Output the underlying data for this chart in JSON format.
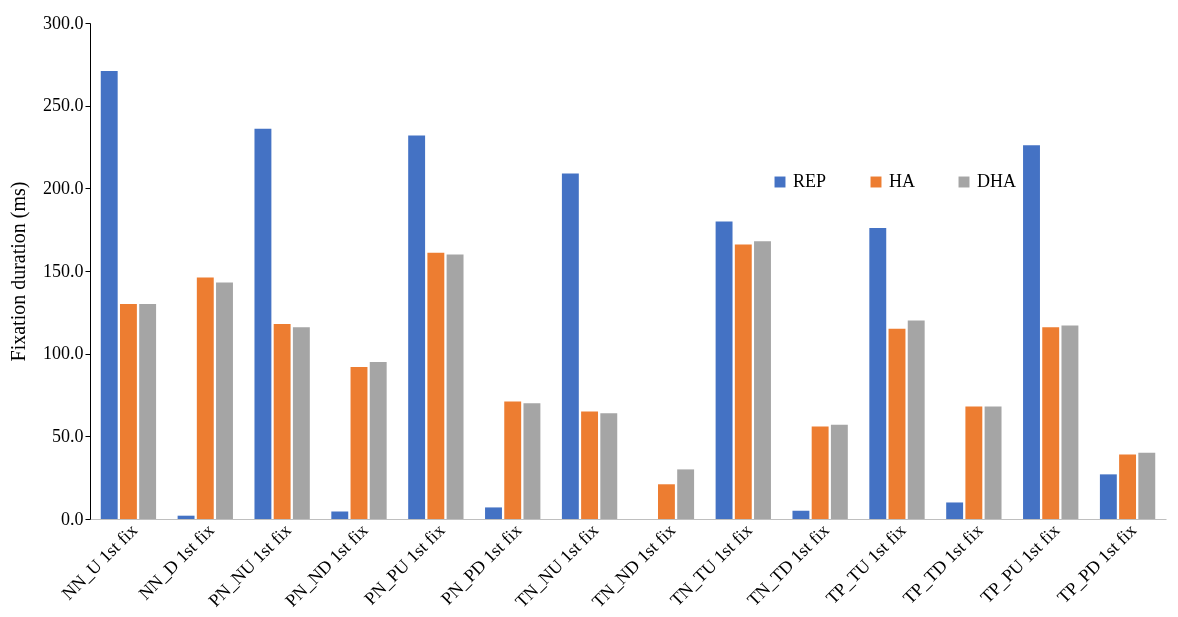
{
  "chart_data": {
    "type": "bar",
    "ylabel": "Fixation duration (ms)",
    "categories": [
      "NN_U 1st fix",
      "NN_D 1st fix",
      "PN_NU 1st fix",
      "PN_ND 1st fix",
      "PN_PU 1st fix",
      "PN_PD 1st fix",
      "TN_NU 1st fix",
      "TN_ND 1st fix",
      "TN_TU 1st fix",
      "TN_TD 1st fix",
      "TP_TU 1st fix",
      "TP_TD 1st fix",
      "TP_PU 1st fix",
      "TP_PD 1st fix"
    ],
    "series": [
      {
        "name": "REP",
        "color": "#4472c4",
        "values": [
          271,
          2,
          236,
          4.5,
          232,
          7,
          209,
          0,
          180,
          5,
          176,
          10,
          226,
          27
        ]
      },
      {
        "name": "HA",
        "color": "#ed7d31",
        "values": [
          130,
          146,
          118,
          92,
          161,
          71,
          65,
          21,
          166,
          56,
          115,
          68,
          116,
          39
        ]
      },
      {
        "name": "DHA",
        "color": "#a5a5a5",
        "values": [
          130,
          143,
          116,
          95,
          160,
          70,
          64,
          30,
          168,
          57,
          120,
          68,
          117,
          40
        ]
      }
    ],
    "ylim": [
      0,
      300
    ],
    "yticks": [
      {
        "value": 0,
        "label": "0.0"
      },
      {
        "value": 50,
        "label": "50.0"
      },
      {
        "value": 100,
        "label": "100.0"
      },
      {
        "value": 150,
        "label": "150.0"
      },
      {
        "value": 200,
        "label": "200.0"
      },
      {
        "value": 250,
        "label": "250.0"
      },
      {
        "value": 300,
        "label": "300.0"
      }
    ],
    "grid": false,
    "legend": "top right"
  }
}
